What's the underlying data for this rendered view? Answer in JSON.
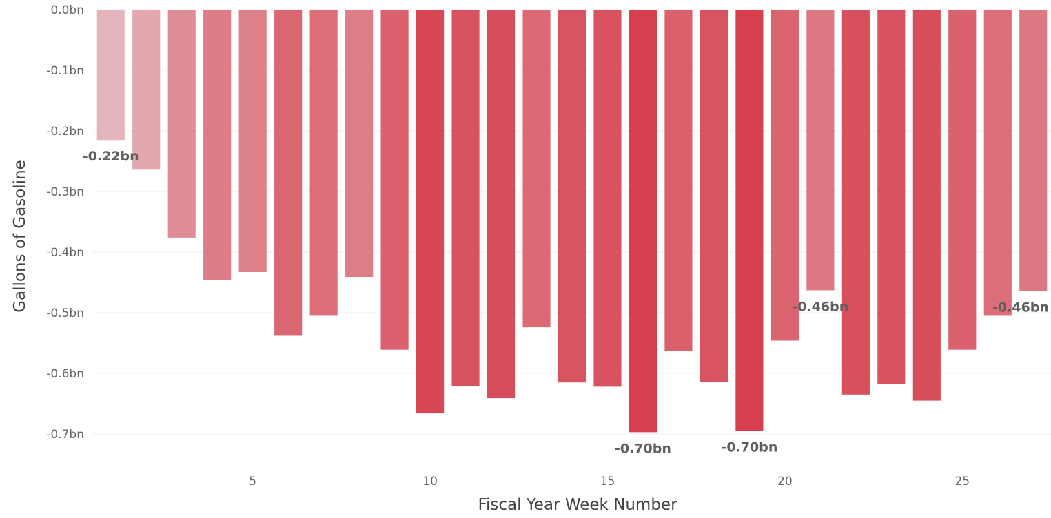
{
  "chart_data": {
    "type": "bar",
    "xlabel": "Fiscal Year Week Number",
    "ylabel": "Gallons of Gasoline",
    "x": [
      1,
      2,
      3,
      4,
      5,
      6,
      7,
      8,
      9,
      10,
      11,
      12,
      13,
      14,
      15,
      16,
      17,
      18,
      19,
      20,
      21,
      22,
      23,
      24,
      25,
      26,
      27
    ],
    "values": [
      -0.215,
      -0.264,
      -0.376,
      -0.446,
      -0.433,
      -0.538,
      -0.505,
      -0.441,
      -0.561,
      -0.666,
      -0.621,
      -0.641,
      -0.524,
      -0.615,
      -0.622,
      -0.697,
      -0.563,
      -0.614,
      -0.695,
      -0.546,
      -0.463,
      -0.635,
      -0.618,
      -0.645,
      -0.561,
      -0.505,
      -0.464
    ],
    "ylim": [
      -0.7,
      0.0
    ],
    "xlim": [
      0.5,
      27.5
    ],
    "yticks": [
      0.0,
      -0.1,
      -0.2,
      -0.3,
      -0.4,
      -0.5,
      -0.6,
      -0.7
    ],
    "ytick_labels": [
      "0.0bn",
      "-0.1bn",
      "-0.2bn",
      "-0.3bn",
      "-0.4bn",
      "-0.5bn",
      "-0.6bn",
      "-0.7bn"
    ],
    "xticks": [
      5,
      10,
      15,
      20,
      25
    ],
    "xtick_labels": [
      "5",
      "10",
      "15",
      "20",
      "25"
    ],
    "data_labels": [
      {
        "x": 1,
        "value": -0.215,
        "text": "-0.22bn"
      },
      {
        "x": 16,
        "value": -0.697,
        "text": "-0.70bn"
      },
      {
        "x": 19,
        "value": -0.695,
        "text": "-0.70bn"
      },
      {
        "x": 21,
        "value": -0.463,
        "text": "-0.46bn"
      },
      {
        "x": 27,
        "value": -0.464,
        "text": "-0.46bn"
      }
    ],
    "grid": true,
    "color_light": "#e3b4b9",
    "color_dark": "#d6404f"
  }
}
